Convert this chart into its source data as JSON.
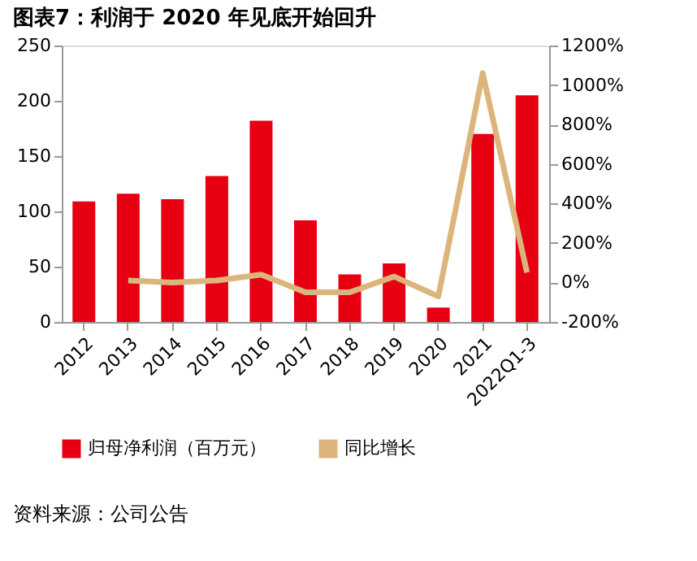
{
  "chart_data": {
    "type": "bar",
    "title": "图表7：利润于 2020 年见底开始回升",
    "categories": [
      "2012",
      "2013",
      "2014",
      "2015",
      "2016",
      "2017",
      "2018",
      "2019",
      "2020",
      "2021",
      "2022Q1-3"
    ],
    "series": [
      {
        "name": "归母净利润（百万元）",
        "color": "#e60012",
        "values": [
          109,
          116,
          111,
          132,
          182,
          92,
          43,
          53,
          13,
          170,
          205
        ]
      },
      {
        "name": "同比增长",
        "color": "#dcb57c",
        "type": "line",
        "axis": "y2",
        "values": [
          null,
          10,
          0,
          10,
          40,
          -50,
          -50,
          30,
          -70,
          1060,
          50
        ]
      }
    ],
    "ylim": [
      0,
      250
    ],
    "yticks": [
      0,
      50,
      100,
      150,
      200,
      250
    ],
    "y2lim": [
      -200,
      1200
    ],
    "y2ticks": [
      {
        "value": -200,
        "label": "-200%"
      },
      {
        "value": 0,
        "label": "0%"
      },
      {
        "value": 200,
        "label": "200%"
      },
      {
        "value": 400,
        "label": "400%"
      },
      {
        "value": 600,
        "label": "600%"
      },
      {
        "value": 800,
        "label": "800%"
      },
      {
        "value": 1000,
        "label": "1000%"
      },
      {
        "value": 1200,
        "label": "1200%"
      }
    ],
    "grid": false,
    "legend": "bottom",
    "marker": "none",
    "annotations": [
      "资料来源：公司公告"
    ]
  }
}
